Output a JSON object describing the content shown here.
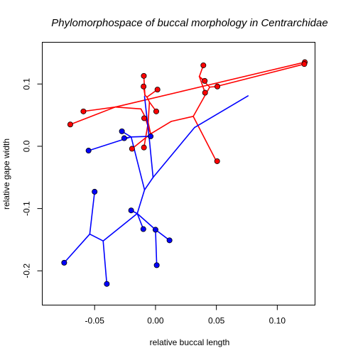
{
  "chart_data": {
    "type": "scatter",
    "title": "Phylomorphospace of buccal morphology in Centrarchidae",
    "xlabel": "relative buccal length",
    "ylabel": "relative gape width",
    "xlim": [
      -0.093,
      0.131
    ],
    "ylim": [
      -0.255,
      0.167
    ],
    "xticks": [
      -0.05,
      0.0,
      0.05,
      0.1
    ],
    "xtick_labels": [
      "-0.05",
      "0.00",
      "0.05",
      "0.10"
    ],
    "yticks": [
      -0.2,
      -0.1,
      0.0,
      0.1
    ],
    "ytick_labels": [
      "-0.2",
      "-0.1",
      "0.0",
      "0.1"
    ],
    "grid": false,
    "series": [
      {
        "color": "#ff0000",
        "edge_color": "#ff0000",
        "tips": [
          {
            "x": -0.0096,
            "y": 0.113
          },
          {
            "x": -0.0098,
            "y": 0.096
          },
          {
            "x": 0.0016,
            "y": 0.091
          },
          {
            "x": 0.0393,
            "y": 0.13
          },
          {
            "x": 0.0404,
            "y": 0.105
          },
          {
            "x": 0.0407,
            "y": 0.086
          },
          {
            "x": 0.1226,
            "y": 0.135
          },
          {
            "x": 0.1222,
            "y": 0.132
          },
          {
            "x": 0.0508,
            "y": 0.096
          },
          {
            "x": -0.0592,
            "y": 0.056
          },
          {
            "x": -0.07,
            "y": 0.035
          },
          {
            "x": 0.0006,
            "y": 0.056
          },
          {
            "x": -0.0093,
            "y": 0.045
          },
          {
            "x": -0.0193,
            "y": -0.004
          },
          {
            "x": -0.0095,
            "y": -0.002
          },
          {
            "x": 0.0506,
            "y": -0.024
          }
        ],
        "edges": [
          {
            "x1": -0.0096,
            "y1": 0.113,
            "x2": -0.0087,
            "y2": 0.082
          },
          {
            "x1": -0.0098,
            "y1": 0.096,
            "x2": -0.0087,
            "y2": 0.082
          },
          {
            "x1": 0.0016,
            "y1": 0.091,
            "x2": -0.007,
            "y2": 0.079
          },
          {
            "x1": -0.0087,
            "y1": 0.082,
            "x2": -0.007,
            "y2": 0.079
          },
          {
            "x1": -0.007,
            "y1": 0.079,
            "x2": -0.005,
            "y2": 0.071
          },
          {
            "x1": -0.005,
            "y1": 0.071,
            "x2": 0.0006,
            "y2": 0.056
          },
          {
            "x1": -0.005,
            "y1": 0.071,
            "x2": -0.006,
            "y2": 0.038
          },
          {
            "x1": -0.006,
            "y1": 0.038,
            "x2": -0.0093,
            "y2": 0.045
          },
          {
            "x1": -0.006,
            "y1": 0.038,
            "x2": -0.0095,
            "y2": -0.002
          },
          {
            "x1": -0.006,
            "y1": 0.038,
            "x2": -0.004,
            "y2": 0.02
          },
          {
            "x1": -0.0593,
            "y1": 0.056,
            "x2": -0.033,
            "y2": 0.063
          },
          {
            "x1": -0.07,
            "y1": 0.035,
            "x2": -0.033,
            "y2": 0.063
          },
          {
            "x1": -0.033,
            "y1": 0.063,
            "x2": -0.012,
            "y2": 0.06
          },
          {
            "x1": -0.012,
            "y1": 0.06,
            "x2": -0.0095,
            "y2": 0.051
          },
          {
            "x1": -0.0095,
            "y1": 0.051,
            "x2": -0.004,
            "y2": 0.02
          },
          {
            "x1": -0.004,
            "y1": 0.02,
            "x2": -0.0193,
            "y2": -0.004
          },
          {
            "x1": -0.004,
            "y1": 0.02,
            "x2": 0.013,
            "y2": 0.04
          },
          {
            "x1": 0.013,
            "y1": 0.04,
            "x2": 0.031,
            "y2": 0.048
          },
          {
            "x1": 0.031,
            "y1": 0.048,
            "x2": 0.05,
            "y2": -0.024
          },
          {
            "x1": 0.031,
            "y1": 0.048,
            "x2": 0.0445,
            "y2": 0.095
          },
          {
            "x1": 0.0445,
            "y1": 0.095,
            "x2": 0.0507,
            "y2": 0.096
          },
          {
            "x1": 0.0445,
            "y1": 0.095,
            "x2": 0.036,
            "y2": 0.112
          },
          {
            "x1": 0.036,
            "y1": 0.112,
            "x2": 0.0393,
            "y2": 0.13
          },
          {
            "x1": 0.036,
            "y1": 0.112,
            "x2": 0.0404,
            "y2": 0.105
          },
          {
            "x1": 0.036,
            "y1": 0.112,
            "x2": 0.0407,
            "y2": 0.086
          },
          {
            "x1": -0.033,
            "y1": 0.063,
            "x2": 0.1226,
            "y2": 0.135
          },
          {
            "x1": 0.05,
            "y1": 0.096,
            "x2": 0.1222,
            "y2": 0.132
          }
        ]
      },
      {
        "color": "#0000ff",
        "edge_color": "#0000ff",
        "tips": [
          {
            "x": -0.0276,
            "y": 0.024
          },
          {
            "x": -0.0257,
            "y": 0.013
          },
          {
            "x": -0.004,
            "y": 0.016
          },
          {
            "x": -0.055,
            "y": -0.007
          },
          {
            "x": -0.05,
            "y": -0.073
          },
          {
            "x": -0.02,
            "y": -0.103
          },
          {
            "x": -0.01,
            "y": -0.133
          },
          {
            "x": 0.0,
            "y": -0.134
          },
          {
            "x": 0.0115,
            "y": -0.151
          },
          {
            "x": 0.001,
            "y": -0.191
          },
          {
            "x": -0.075,
            "y": -0.187
          },
          {
            "x": -0.04,
            "y": -0.221
          }
        ],
        "edges": [
          {
            "x1": -0.0276,
            "y1": 0.024,
            "x2": -0.02,
            "y2": 0.015
          },
          {
            "x1": -0.0257,
            "y1": 0.013,
            "x2": -0.02,
            "y2": 0.015
          },
          {
            "x1": -0.004,
            "y1": 0.016,
            "x2": -0.02,
            "y2": 0.015
          },
          {
            "x1": -0.02,
            "y1": 0.015,
            "x2": -0.009,
            "y2": -0.07
          },
          {
            "x1": -0.055,
            "y1": -0.007,
            "x2": -0.02,
            "y2": 0.015
          },
          {
            "x1": -0.009,
            "y1": -0.07,
            "x2": -0.002,
            "y2": -0.05
          },
          {
            "x1": -0.002,
            "y1": -0.05,
            "x2": -0.005,
            "y2": 0.01
          },
          {
            "x1": -0.005,
            "y1": 0.01,
            "x2": -0.009,
            "y2": 0.08
          },
          {
            "x1": -0.002,
            "y1": -0.05,
            "x2": 0.032,
            "y2": 0.03
          },
          {
            "x1": 0.032,
            "y1": 0.03,
            "x2": 0.076,
            "y2": 0.081
          },
          {
            "x1": -0.009,
            "y1": -0.07,
            "x2": -0.015,
            "y2": -0.108
          },
          {
            "x1": -0.015,
            "y1": -0.108,
            "x2": -0.02,
            "y2": -0.103
          },
          {
            "x1": -0.015,
            "y1": -0.108,
            "x2": -0.01,
            "y2": -0.133
          },
          {
            "x1": -0.015,
            "y1": -0.108,
            "x2": 0.0,
            "y2": -0.134
          },
          {
            "x1": 0.0,
            "y1": -0.134,
            "x2": 0.0115,
            "y2": -0.151
          },
          {
            "x1": 0.0,
            "y1": -0.134,
            "x2": 0.001,
            "y2": -0.191
          },
          {
            "x1": -0.015,
            "y1": -0.108,
            "x2": -0.043,
            "y2": -0.152
          },
          {
            "x1": -0.043,
            "y1": -0.152,
            "x2": -0.054,
            "y2": -0.141
          },
          {
            "x1": -0.054,
            "y1": -0.141,
            "x2": -0.05,
            "y2": -0.073
          },
          {
            "x1": -0.054,
            "y1": -0.141,
            "x2": -0.075,
            "y2": -0.187
          },
          {
            "x1": -0.043,
            "y1": -0.152,
            "x2": -0.04,
            "y2": -0.221
          }
        ]
      }
    ]
  }
}
